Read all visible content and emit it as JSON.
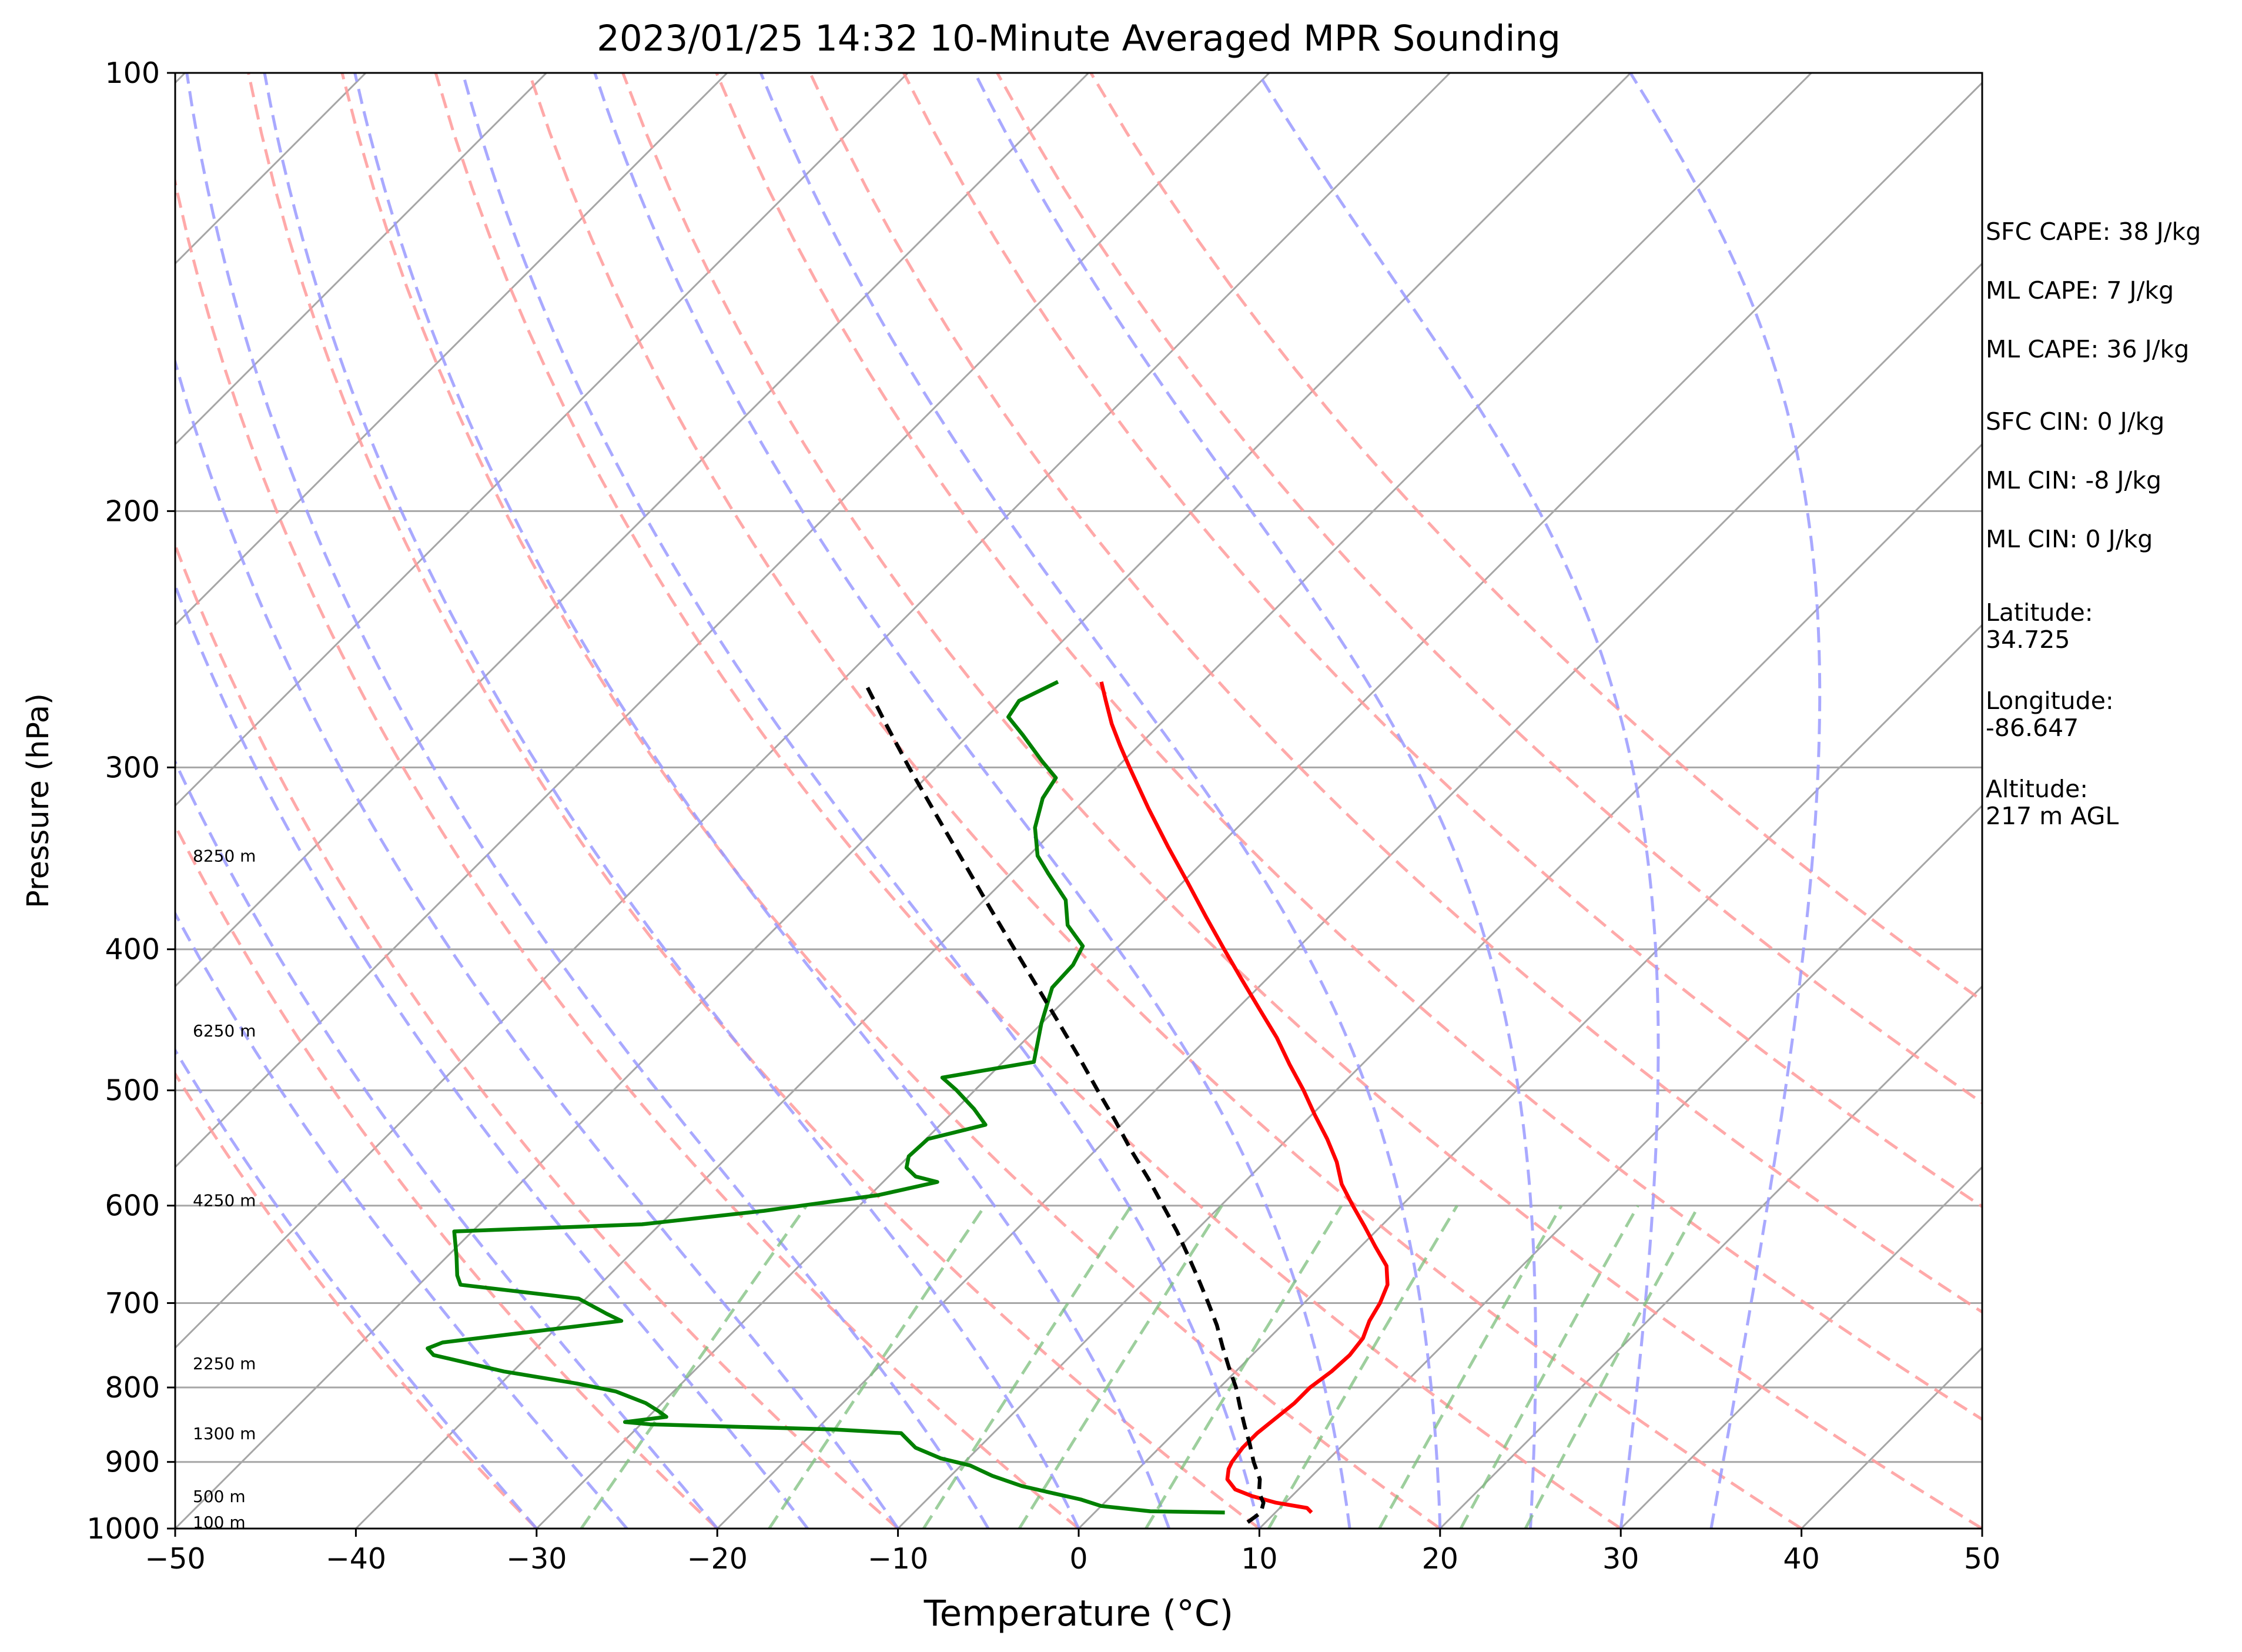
{
  "chart_data": {
    "type": "skew-t",
    "title": "2023/01/25 14:32 10-Minute Averaged MPR Sounding",
    "xlabel": "Temperature (°C)",
    "ylabel": "Pressure (hPa)",
    "xlim": [
      -50,
      50
    ],
    "ylim": [
      1000,
      100
    ],
    "y_scale": "log",
    "skew_deg": 45,
    "x_ticks": [
      {
        "v": -50,
        "label": "−50"
      },
      {
        "v": -40,
        "label": "−40"
      },
      {
        "v": -30,
        "label": "−30"
      },
      {
        "v": -20,
        "label": "−20"
      },
      {
        "v": -10,
        "label": "−10"
      },
      {
        "v": 0,
        "label": "0"
      },
      {
        "v": 10,
        "label": "10"
      },
      {
        "v": 20,
        "label": "20"
      },
      {
        "v": 30,
        "label": "30"
      },
      {
        "v": 40,
        "label": "40"
      },
      {
        "v": 50,
        "label": "50"
      }
    ],
    "y_ticks": [
      {
        "v": 100,
        "label": "100"
      },
      {
        "v": 200,
        "label": "200"
      },
      {
        "v": 300,
        "label": "300"
      },
      {
        "v": 400,
        "label": "400"
      },
      {
        "v": 500,
        "label": "500"
      },
      {
        "v": 600,
        "label": "600"
      },
      {
        "v": 700,
        "label": "700"
      },
      {
        "v": 800,
        "label": "800"
      },
      {
        "v": 900,
        "label": "900"
      },
      {
        "v": 1000,
        "label": "1000"
      }
    ],
    "height_labels": [
      {
        "p": 990,
        "label": "100 m"
      },
      {
        "p": 950,
        "label": "500 m"
      },
      {
        "p": 860,
        "label": "1300 m"
      },
      {
        "p": 770,
        "label": "2250 m"
      },
      {
        "p": 595,
        "label": "4250 m"
      },
      {
        "p": 455,
        "label": "6250 m"
      },
      {
        "p": 345,
        "label": "8250 m"
      }
    ],
    "isotherms_c": [
      -150,
      -140,
      -130,
      -120,
      -110,
      -100,
      -90,
      -80,
      -70,
      -60,
      -50,
      -40,
      -30,
      -20,
      -10,
      0,
      10,
      20,
      30,
      40,
      50
    ],
    "dry_adiabats_theta_c": [
      -30,
      -20,
      -10,
      0,
      10,
      20,
      30,
      40,
      50,
      60,
      70,
      80,
      90,
      100
    ],
    "moist_adiabats_c": [
      -30,
      -25,
      -20,
      -15,
      -10,
      -5,
      0,
      5,
      10,
      15,
      20,
      25,
      30,
      35
    ],
    "mixing_ratio_lines_gkg": [
      0.4,
      1,
      2,
      3,
      5,
      8,
      12,
      16,
      20
    ],
    "series": [
      {
        "key": "temperature",
        "color": "#ff0000",
        "points": [
          [
            975,
            12.0
          ],
          [
            968,
            11.5
          ],
          [
            960,
            9.5
          ],
          [
            950,
            7.8
          ],
          [
            940,
            6.5
          ],
          [
            925,
            5.5
          ],
          [
            910,
            5.0
          ],
          [
            900,
            4.8
          ],
          [
            880,
            4.6
          ],
          [
            860,
            4.6
          ],
          [
            840,
            4.8
          ],
          [
            820,
            5.0
          ],
          [
            800,
            5.0
          ],
          [
            780,
            5.3
          ],
          [
            760,
            5.4
          ],
          [
            740,
            5.2
          ],
          [
            720,
            4.6
          ],
          [
            700,
            4.2
          ],
          [
            680,
            3.6
          ],
          [
            660,
            2.5
          ],
          [
            640,
            0.8
          ],
          [
            620,
            -0.9
          ],
          [
            600,
            -2.7
          ],
          [
            580,
            -4.5
          ],
          [
            560,
            -6.0
          ],
          [
            540,
            -7.8
          ],
          [
            520,
            -9.8
          ],
          [
            500,
            -11.8
          ],
          [
            480,
            -14.0
          ],
          [
            460,
            -16.2
          ],
          [
            440,
            -18.7
          ],
          [
            420,
            -21.3
          ],
          [
            400,
            -24.0
          ],
          [
            380,
            -26.8
          ],
          [
            360,
            -29.7
          ],
          [
            340,
            -32.8
          ],
          [
            320,
            -36.0
          ],
          [
            300,
            -39.3
          ],
          [
            290,
            -41.0
          ],
          [
            280,
            -42.7
          ],
          [
            270,
            -44.3
          ],
          [
            262,
            -45.6
          ]
        ]
      },
      {
        "key": "dewpoint",
        "color": "#008000",
        "points": [
          [
            975,
            7.2
          ],
          [
            973,
            3.0
          ],
          [
            965,
            0.0
          ],
          [
            955,
            -1.5
          ],
          [
            945,
            -3.5
          ],
          [
            935,
            -5.5
          ],
          [
            920,
            -7.7
          ],
          [
            905,
            -9.5
          ],
          [
            895,
            -11.5
          ],
          [
            880,
            -13.5
          ],
          [
            870,
            -14.3
          ],
          [
            860,
            -15.1
          ],
          [
            855,
            -19.0
          ],
          [
            848,
            -29.5
          ],
          [
            845,
            -31.0
          ],
          [
            838,
            -29.0
          ],
          [
            830,
            -29.8
          ],
          [
            820,
            -30.9
          ],
          [
            805,
            -33.2
          ],
          [
            795,
            -35.8
          ],
          [
            780,
            -40.5
          ],
          [
            760,
            -45.3
          ],
          [
            752,
            -46.0
          ],
          [
            745,
            -45.5
          ],
          [
            720,
            -36.8
          ],
          [
            712,
            -38.0
          ],
          [
            695,
            -40.4
          ],
          [
            680,
            -47.7
          ],
          [
            670,
            -48.4
          ],
          [
            650,
            -49.5
          ],
          [
            625,
            -51.0
          ],
          [
            618,
            -41.0
          ],
          [
            605,
            -35.0
          ],
          [
            590,
            -29.5
          ],
          [
            578,
            -27.0
          ],
          [
            573,
            -28.5
          ],
          [
            565,
            -29.5
          ],
          [
            555,
            -30.0
          ],
          [
            540,
            -29.9
          ],
          [
            528,
            -27.5
          ],
          [
            515,
            -29.0
          ],
          [
            500,
            -31.0
          ],
          [
            490,
            -32.5
          ],
          [
            478,
            -28.3
          ],
          [
            450,
            -30.0
          ],
          [
            425,
            -31.4
          ],
          [
            410,
            -31.5
          ],
          [
            398,
            -32.0
          ],
          [
            385,
            -34.0
          ],
          [
            370,
            -35.5
          ],
          [
            355,
            -37.9
          ],
          [
            345,
            -39.5
          ],
          [
            330,
            -41.2
          ],
          [
            315,
            -42.4
          ],
          [
            305,
            -42.8
          ],
          [
            297,
            -44.5
          ],
          [
            285,
            -47.0
          ],
          [
            277,
            -48.8
          ],
          [
            270,
            -49.1
          ],
          [
            262,
            -48.0
          ]
        ]
      },
      {
        "key": "parcel",
        "color": "#000000",
        "dashed": true,
        "points": [
          [
            990,
            9.0
          ],
          [
            975,
            9.2
          ],
          [
            960,
            8.8
          ],
          [
            945,
            8.0
          ],
          [
            925,
            7.3
          ],
          [
            900,
            6.0
          ],
          [
            875,
            4.8
          ],
          [
            850,
            3.5
          ],
          [
            825,
            2.2
          ],
          [
            800,
            0.9
          ],
          [
            775,
            -0.6
          ],
          [
            750,
            -2.1
          ],
          [
            725,
            -3.6
          ],
          [
            700,
            -5.3
          ],
          [
            675,
            -7.1
          ],
          [
            650,
            -9.0
          ],
          [
            625,
            -11.0
          ],
          [
            600,
            -13.2
          ],
          [
            575,
            -15.5
          ],
          [
            550,
            -18.0
          ],
          [
            525,
            -20.5
          ],
          [
            500,
            -23.2
          ],
          [
            475,
            -26.0
          ],
          [
            450,
            -29.0
          ],
          [
            425,
            -32.2
          ],
          [
            400,
            -35.6
          ],
          [
            375,
            -39.2
          ],
          [
            350,
            -43.0
          ],
          [
            325,
            -47.1
          ],
          [
            300,
            -51.5
          ],
          [
            280,
            -55.2
          ],
          [
            262,
            -58.7
          ]
        ]
      }
    ]
  },
  "info_lines": [
    "SFC CAPE: 38 J/kg",
    "ML CAPE: 7 J/kg",
    "ML CAPE: 36 J/kg",
    "SFC CIN: 0 J/kg",
    "ML CIN: -8 J/kg",
    "ML CIN: 0 J/kg",
    "Latitude:",
    "34.725",
    "Longitude:",
    "-86.647",
    "Altitude:",
    "217 m AGL"
  ],
  "colors": {
    "temperature": "#ff0000",
    "dewpoint": "#008000",
    "parcel": "#000000",
    "isotherm": "#a6a6a6",
    "dry_adiabat": "#ff9a9a",
    "moist_adiabat": "#9a9aff",
    "mixing_ratio": "#7cbf7c"
  }
}
